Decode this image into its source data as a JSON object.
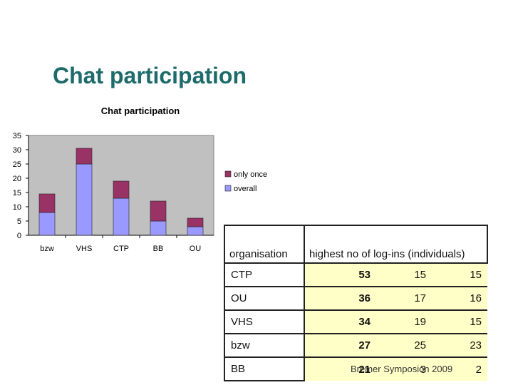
{
  "slide": {
    "title": "Chat participation",
    "footer": "Bremer Symposion 2009"
  },
  "colors": {
    "title": "#1e6b6b",
    "only_once": "#993366",
    "overall": "#9999ff",
    "plot_bg": "#c0c0c0",
    "table_values_bg": "#ffffc8"
  },
  "chart_data": {
    "type": "bar",
    "stacked": true,
    "title": "Chat participation",
    "categories": [
      "bzw",
      "VHS",
      "CTP",
      "BB",
      "OU"
    ],
    "series": [
      {
        "name": "overall",
        "color": "#9999ff",
        "values": [
          8,
          25,
          13,
          5,
          3
        ]
      },
      {
        "name": "only once",
        "color": "#993366",
        "values": [
          6.5,
          5.5,
          6,
          7,
          3
        ]
      }
    ],
    "ylim": [
      0,
      35
    ],
    "yticks": [
      0,
      5,
      10,
      15,
      20,
      25,
      30,
      35
    ],
    "grid": false,
    "legend": "right"
  },
  "table": {
    "headers": [
      "organisation",
      "highest no of log-ins (individuals)"
    ],
    "rows": [
      {
        "org": "CTP",
        "v1": "53",
        "v2": "15",
        "v3": "15"
      },
      {
        "org": "OU",
        "v1": "36",
        "v2": "17",
        "v3": "16"
      },
      {
        "org": "VHS",
        "v1": "34",
        "v2": "19",
        "v3": "15"
      },
      {
        "org": "bzw",
        "v1": "27",
        "v2": "25",
        "v3": "23"
      },
      {
        "org": "BB",
        "v1": "21",
        "v2": "3",
        "v3": "2"
      }
    ]
  }
}
